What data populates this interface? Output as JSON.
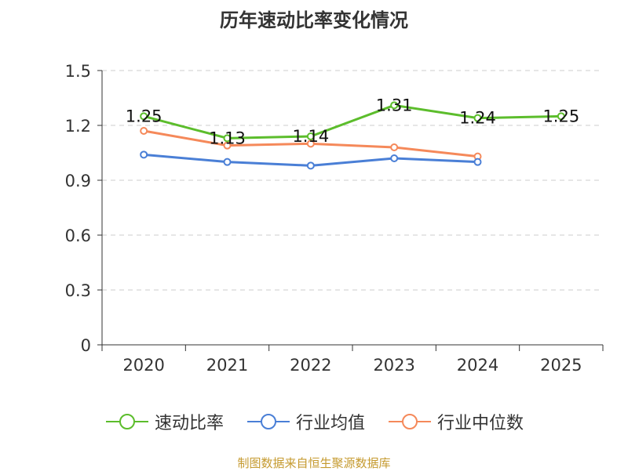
{
  "chart_data": {
    "type": "line",
    "title": "历年速动比率变化情况",
    "categories": [
      "2020",
      "2021",
      "2022",
      "2023",
      "2024",
      "2025"
    ],
    "ylim": [
      0,
      1.5
    ],
    "yticks": [
      "0",
      "0.3",
      "0.6",
      "0.9",
      "1.2",
      "1.5"
    ],
    "ytick_values": [
      0,
      0.3,
      0.6,
      0.9,
      1.2,
      1.5
    ],
    "grid": true,
    "series": [
      {
        "name": "速动比率",
        "color": "#5cbd2c",
        "values": [
          1.25,
          1.13,
          1.14,
          1.31,
          1.24,
          1.25
        ],
        "labels": [
          "1.25",
          "1.13",
          "1.14",
          "1.31",
          "1.24",
          "1.25"
        ]
      },
      {
        "name": "行业均值",
        "color": "#4a7fd6",
        "values": [
          1.04,
          1.0,
          0.98,
          1.02,
          1.0,
          null
        ]
      },
      {
        "name": "行业中位数",
        "color": "#f5895a",
        "values": [
          1.17,
          1.09,
          1.1,
          1.08,
          1.03,
          null
        ]
      }
    ]
  },
  "legend": [
    "速动比率",
    "行业均值",
    "行业中位数"
  ],
  "source": "制图数据来自恒生聚源数据库"
}
